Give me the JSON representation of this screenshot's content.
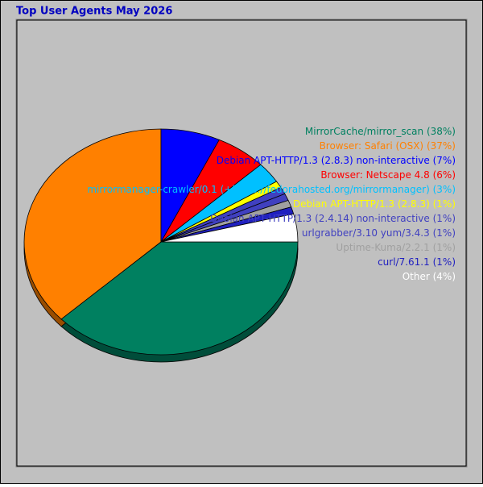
{
  "chart_data": {
    "type": "pie",
    "title": "Top User Agents May 2026",
    "categories": [
      "MirrorCache/mirror_scan",
      "Browser: Safari (OSX)",
      "Debian APT-HTTP/1.3 (2.8.3) non-interactive",
      "Browser: Netscape 4.8",
      "mirrormanager-crawler/0.1 (+https://fedorahosted.org/mirrormanager)",
      "Debian APT-HTTP/1.3 (2.8.3)",
      "Debian APT-HTTP/1.3 (2.4.14) non-interactive",
      "urlgrabber/3.10 yum/3.4.3",
      "Uptime-Kuma/2.2.1",
      "curl/7.61.1",
      "Other"
    ],
    "values": [
      38,
      37,
      7,
      6,
      3,
      1,
      1,
      1,
      1,
      1,
      4
    ],
    "value_labels": [
      "(38%)",
      "(37%)",
      "(7%)",
      "(6%)",
      "(3%)",
      "(1%)",
      "(1%)",
      "(1%)",
      "(1%)",
      "(1%)",
      "(4%)"
    ],
    "colors": [
      "#008060",
      "#ff8000",
      "#0000ff",
      "#ff0000",
      "#00c0ff",
      "#ffff00",
      "#4040c0",
      "#4040c0",
      "#a0a0a0",
      "#2020c0",
      "#ffffff"
    ]
  }
}
